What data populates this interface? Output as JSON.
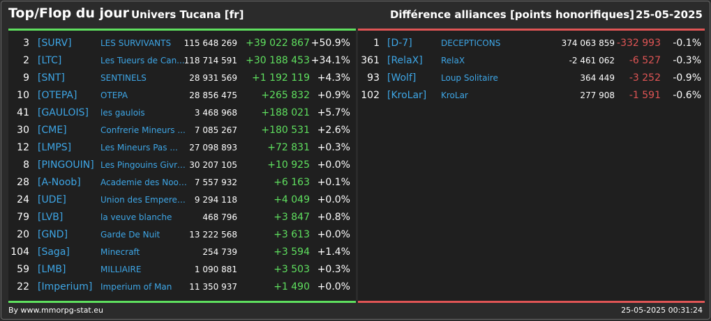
{
  "header": {
    "title": "Top/Flop du jour",
    "universe": "Univers Tucana [fr]",
    "diff_label": "Différence alliances [points honorifiques]",
    "date": "25-05-2025"
  },
  "top": [
    {
      "rank": "3",
      "tag": "[SURV]",
      "name": "LES SURVIVANTS",
      "points": "115 648 269",
      "delta": "+39 022 867",
      "pct": "+50.9%"
    },
    {
      "rank": "2",
      "tag": "[LTC]",
      "name": "Les Tueurs de Can...",
      "points": "118 714 591",
      "delta": "+30 188 453",
      "pct": "+34.1%"
    },
    {
      "rank": "9",
      "tag": "[SNT]",
      "name": "SENTINELS",
      "points": "28 931 569",
      "delta": "+1 192 119",
      "pct": "+4.3%"
    },
    {
      "rank": "10",
      "tag": "[OTEPA]",
      "name": "OTEPA",
      "points": "28 856 475",
      "delta": "+265 832",
      "pct": "+0.9%"
    },
    {
      "rank": "41",
      "tag": "[GAULOIS]",
      "name": "les gaulois",
      "points": "3 468 968",
      "delta": "+188 021",
      "pct": "+5.7%"
    },
    {
      "rank": "30",
      "tag": "[CME]",
      "name": "Confrerie Mineurs ...",
      "points": "7 085 267",
      "delta": "+180 531",
      "pct": "+2.6%"
    },
    {
      "rank": "12",
      "tag": "[LMPS]",
      "name": "Les Mineurs Pas ...",
      "points": "27 098 893",
      "delta": "+72 831",
      "pct": "+0.3%"
    },
    {
      "rank": "8",
      "tag": "[PINGOUIN]",
      "name": "Les Pingouins Givre...",
      "points": "30 207 105",
      "delta": "+10 925",
      "pct": "+0.0%"
    },
    {
      "rank": "28",
      "tag": "[A-Noob]",
      "name": "Academie des Noob...",
      "points": "7 557 932",
      "delta": "+6 163",
      "pct": "+0.1%"
    },
    {
      "rank": "24",
      "tag": "[UDE]",
      "name": "Union des Empereur...",
      "points": "9 294 118",
      "delta": "+4 049",
      "pct": "+0.0%"
    },
    {
      "rank": "79",
      "tag": "[LVB]",
      "name": "la veuve blanche",
      "points": "468 796",
      "delta": "+3 847",
      "pct": "+0.8%"
    },
    {
      "rank": "20",
      "tag": "[GND]",
      "name": "Garde De Nuit",
      "points": "13 222 568",
      "delta": "+3 613",
      "pct": "+0.0%"
    },
    {
      "rank": "104",
      "tag": "[Saga]",
      "name": "Minecraft",
      "points": "254 739",
      "delta": "+3 594",
      "pct": "+1.4%"
    },
    {
      "rank": "59",
      "tag": "[LMB]",
      "name": "MILLIAIRE",
      "points": "1 090 881",
      "delta": "+3 503",
      "pct": "+0.3%"
    },
    {
      "rank": "22",
      "tag": "[Imperium]",
      "name": "Imperium of Man",
      "points": "11 350 937",
      "delta": "+1 490",
      "pct": "+0.0%"
    }
  ],
  "flop": [
    {
      "rank": "1",
      "tag": "[D-7]",
      "name": "DECEPTICONS",
      "points": "374 063 859",
      "delta": "-332 993",
      "pct": "-0.1%"
    },
    {
      "rank": "361",
      "tag": "[RelaX]",
      "name": "RelaX",
      "points": "-2 461 062",
      "delta": "-6 527",
      "pct": "-0.3%"
    },
    {
      "rank": "93",
      "tag": "[Wolf]",
      "name": "Loup Solitaire",
      "points": "364 449",
      "delta": "-3 252",
      "pct": "-0.9%"
    },
    {
      "rank": "102",
      "tag": "[KroLar]",
      "name": "KroLar",
      "points": "277 908",
      "delta": "-1 591",
      "pct": "-0.6%"
    }
  ],
  "footer": {
    "site": "By www.mmorpg-stat.eu",
    "timestamp": "25-05-2025 00:31:24"
  },
  "colors": {
    "positive": "#5fe05f",
    "negative": "#e05555",
    "link": "#3ea6e6"
  }
}
